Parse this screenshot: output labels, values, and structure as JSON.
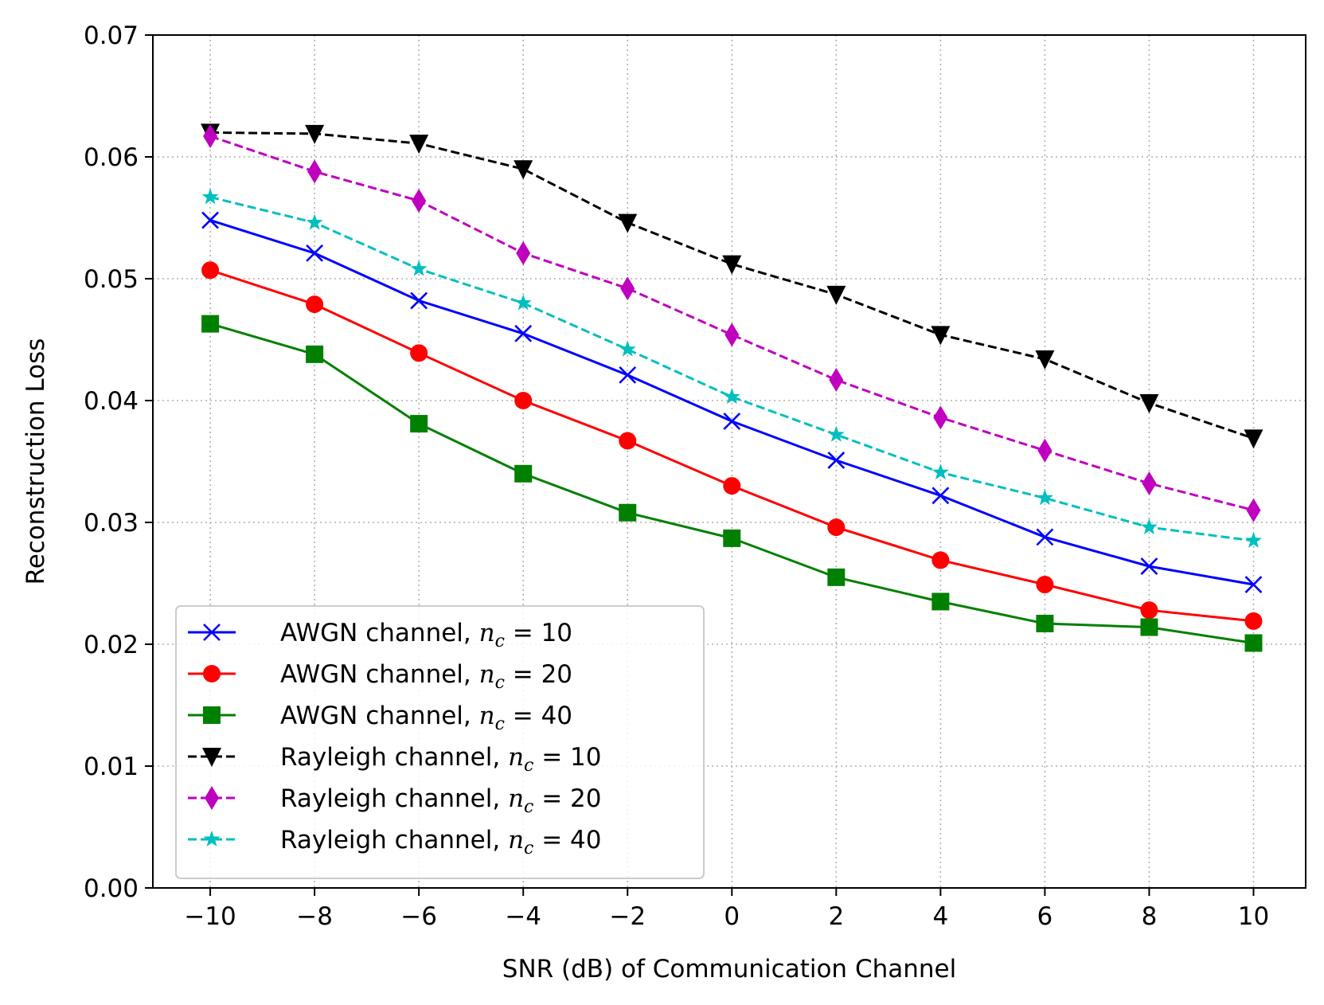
{
  "chart_data": {
    "type": "line",
    "title": "",
    "xlabel": "SNR (dB) of Communication Channel",
    "ylabel": "Reconstruction Loss",
    "x": [
      -10,
      -8,
      -6,
      -4,
      -2,
      0,
      2,
      4,
      6,
      8,
      10
    ],
    "xlim": [
      -11.1,
      11.0
    ],
    "ylim": [
      0.0,
      0.07
    ],
    "xticks": [
      -10,
      -8,
      -6,
      -4,
      -2,
      0,
      2,
      4,
      6,
      8,
      10
    ],
    "xtick_labels": [
      "−10",
      "−8",
      "−6",
      "−4",
      "−2",
      "0",
      "2",
      "4",
      "6",
      "8",
      "10"
    ],
    "yticks": [
      0.0,
      0.01,
      0.02,
      0.03,
      0.04,
      0.05,
      0.06,
      0.07
    ],
    "ytick_labels": [
      "0.00",
      "0.01",
      "0.02",
      "0.03",
      "0.04",
      "0.05",
      "0.06",
      "0.07"
    ],
    "grid": true,
    "legend_position": "lower-left",
    "series": [
      {
        "name": "AWGN channel, ",
        "math_var": "n",
        "math_sub": "c",
        "math_eq": " = 10",
        "color": "#0000ff",
        "linestyle": "solid",
        "marker": "x",
        "values": [
          0.0548,
          0.0521,
          0.0482,
          0.0455,
          0.0421,
          0.0383,
          0.0351,
          0.0322,
          0.0288,
          0.0264,
          0.0249
        ]
      },
      {
        "name": "AWGN channel, ",
        "math_var": "n",
        "math_sub": "c",
        "math_eq": " = 20",
        "color": "#ff0000",
        "linestyle": "solid",
        "marker": "circle",
        "values": [
          0.0507,
          0.0479,
          0.0439,
          0.04,
          0.0367,
          0.033,
          0.0296,
          0.0269,
          0.0249,
          0.0228,
          0.0219
        ]
      },
      {
        "name": "AWGN channel, ",
        "math_var": "n",
        "math_sub": "c",
        "math_eq": " = 40",
        "color": "#008000",
        "linestyle": "solid",
        "marker": "square",
        "values": [
          0.0463,
          0.0438,
          0.0381,
          0.034,
          0.0308,
          0.0287,
          0.0255,
          0.0235,
          0.0217,
          0.0214,
          0.0201
        ]
      },
      {
        "name": "Rayleigh channel, ",
        "math_var": "n",
        "math_sub": "c",
        "math_eq": " = 10",
        "color": "#000000",
        "linestyle": "dashed",
        "marker": "triangle-down",
        "values": [
          0.062,
          0.0619,
          0.0611,
          0.059,
          0.0546,
          0.0512,
          0.0487,
          0.0454,
          0.0434,
          0.0398,
          0.0369
        ]
      },
      {
        "name": "Rayleigh channel, ",
        "math_var": "n",
        "math_sub": "c",
        "math_eq": " = 20",
        "color": "#bf00bf",
        "linestyle": "dashed",
        "marker": "thin-diamond",
        "values": [
          0.0617,
          0.0588,
          0.0564,
          0.0521,
          0.0492,
          0.0454,
          0.0417,
          0.0386,
          0.0359,
          0.0332,
          0.031
        ]
      },
      {
        "name": "Rayleigh channel, ",
        "math_var": "n",
        "math_sub": "c",
        "math_eq": " = 40",
        "color": "#00bfbf",
        "linestyle": "dashed",
        "marker": "star",
        "values": [
          0.0567,
          0.0546,
          0.0508,
          0.048,
          0.0442,
          0.0403,
          0.0372,
          0.0341,
          0.032,
          0.0296,
          0.0285
        ]
      }
    ]
  }
}
